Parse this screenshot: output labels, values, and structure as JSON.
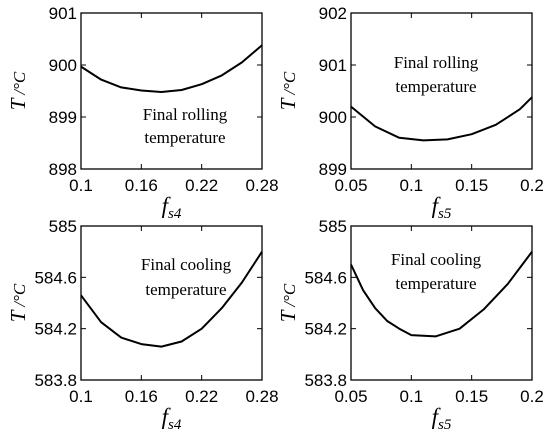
{
  "chart_data": [
    {
      "type": "line",
      "ylabel_main": "T",
      "ylabel_unit": "/°C",
      "xlabel_main": "f",
      "xlabel_sub": "s4",
      "xlim": [
        0.1,
        0.28
      ],
      "ylim": [
        898,
        901
      ],
      "xticks": [
        0.1,
        0.16,
        0.22,
        0.28
      ],
      "xtick_labels": [
        "0.1",
        "0.16",
        "0.22",
        "0.28"
      ],
      "yticks": [
        898,
        899,
        900,
        901
      ],
      "ytick_labels": [
        "898",
        "899",
        "900",
        "901"
      ],
      "annotation": [
        "Final rolling",
        "temperature"
      ],
      "series": [
        {
          "x": [
            0.1,
            0.12,
            0.14,
            0.16,
            0.18,
            0.2,
            0.22,
            0.24,
            0.26,
            0.28
          ],
          "values": [
            899.97,
            899.72,
            899.57,
            899.51,
            899.48,
            899.52,
            899.63,
            899.8,
            900.05,
            900.38
          ]
        }
      ]
    },
    {
      "type": "line",
      "ylabel_main": "T",
      "ylabel_unit": "/°C",
      "xlabel_main": "f",
      "xlabel_sub": "s5",
      "xlim": [
        0.05,
        0.2
      ],
      "ylim": [
        899,
        902
      ],
      "xticks": [
        0.05,
        0.1,
        0.15,
        0.2
      ],
      "xtick_labels": [
        "0.05",
        "0.1",
        "0.15",
        "0.2"
      ],
      "yticks": [
        899,
        900,
        901,
        902
      ],
      "ytick_labels": [
        "899",
        "900",
        "901",
        "902"
      ],
      "annotation": [
        "Final rolling",
        "temperature"
      ],
      "series": [
        {
          "x": [
            0.05,
            0.07,
            0.09,
            0.11,
            0.13,
            0.15,
            0.17,
            0.19,
            0.2
          ],
          "values": [
            900.2,
            899.82,
            899.6,
            899.55,
            899.57,
            899.67,
            899.85,
            900.15,
            900.38
          ]
        }
      ]
    },
    {
      "type": "line",
      "ylabel_main": "T",
      "ylabel_unit": "/°C",
      "xlabel_main": "f",
      "xlabel_sub": "s4",
      "xlim": [
        0.1,
        0.28
      ],
      "ylim": [
        583.8,
        585
      ],
      "xticks": [
        0.1,
        0.16,
        0.22,
        0.28
      ],
      "xtick_labels": [
        "0.1",
        "0.16",
        "0.22",
        "0.28"
      ],
      "yticks": [
        583.8,
        584.2,
        584.6,
        585
      ],
      "ytick_labels": [
        "583.8",
        "584.2",
        "584.6",
        "585"
      ],
      "annotation": [
        "Final cooling",
        "temperature"
      ],
      "series": [
        {
          "x": [
            0.1,
            0.12,
            0.14,
            0.16,
            0.18,
            0.2,
            0.22,
            0.24,
            0.26,
            0.28
          ],
          "values": [
            584.46,
            584.25,
            584.13,
            584.08,
            584.06,
            584.1,
            584.2,
            584.36,
            584.56,
            584.8
          ]
        }
      ]
    },
    {
      "type": "line",
      "ylabel_main": "T",
      "ylabel_unit": "/°C",
      "xlabel_main": "f",
      "xlabel_sub": "s5",
      "xlim": [
        0.05,
        0.2
      ],
      "ylim": [
        583.8,
        585
      ],
      "xticks": [
        0.05,
        0.1,
        0.15,
        0.2
      ],
      "xtick_labels": [
        "0.05",
        "0.1",
        "0.15",
        "0.2"
      ],
      "yticks": [
        583.8,
        584.2,
        584.6,
        585
      ],
      "ytick_labels": [
        "583.8",
        "584.2",
        "584.6",
        "585"
      ],
      "annotation": [
        "Final cooling",
        "temperature"
      ],
      "series": [
        {
          "x": [
            0.05,
            0.06,
            0.07,
            0.08,
            0.09,
            0.1,
            0.12,
            0.14,
            0.16,
            0.18,
            0.2
          ],
          "values": [
            584.7,
            584.5,
            584.36,
            584.26,
            584.2,
            584.15,
            584.14,
            584.2,
            584.35,
            584.55,
            584.8
          ]
        }
      ]
    }
  ]
}
